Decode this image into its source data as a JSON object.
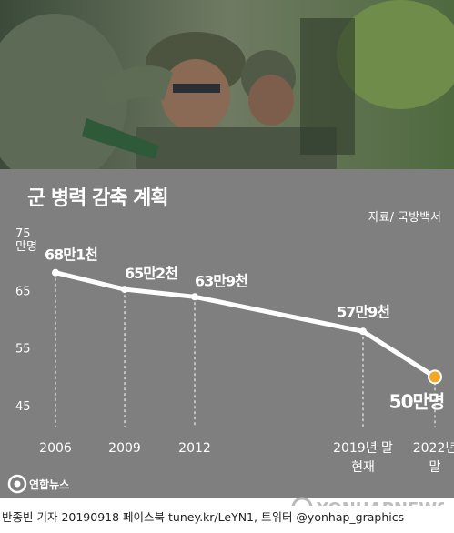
{
  "chart_data": {
    "type": "line",
    "title": "군 병력 감축 계획",
    "source": "자료/ 국방백서",
    "y_unit": "만명",
    "ylim": [
      45,
      75
    ],
    "y_ticks": [
      75,
      65,
      55,
      45
    ],
    "grid": false,
    "x": [
      2006,
      2009,
      2012,
      2019,
      2022
    ],
    "x_labels": [
      [
        "2006"
      ],
      [
        "2009"
      ],
      [
        "2012"
      ],
      [
        "2019년 말",
        "현재"
      ],
      [
        "2022년",
        "말"
      ]
    ],
    "values": [
      68.1,
      65.2,
      63.9,
      57.9,
      50
    ],
    "data_labels": [
      "68만1천",
      "65만2천",
      "63만9천",
      "57만9천",
      "50만명"
    ],
    "highlight_color": "#f5a623",
    "line_color": "#ffffff"
  },
  "branding": {
    "logo_text": "연합뉴스",
    "watermark": "YONHAPNEWS",
    "credit": "반종빈 기자 20190918 페이스북 tuney.kr/LeYN1, 트위터 @yonhap_graphics"
  }
}
